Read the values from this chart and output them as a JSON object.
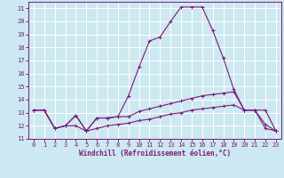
{
  "xlabel": "Windchill (Refroidissement éolien,°C)",
  "background_color": "#cce8f0",
  "grid_color": "#ffffff",
  "line_color": "#7b1a7b",
  "xlim": [
    -0.5,
    23.5
  ],
  "ylim": [
    11.0,
    21.5
  ],
  "xticks": [
    0,
    1,
    2,
    3,
    4,
    5,
    6,
    7,
    8,
    9,
    10,
    11,
    12,
    13,
    14,
    15,
    16,
    17,
    18,
    19,
    20,
    21,
    22,
    23
  ],
  "yticks": [
    11,
    12,
    13,
    14,
    15,
    16,
    17,
    18,
    19,
    20,
    21
  ],
  "series": [
    [
      13.2,
      13.2,
      11.8,
      12.0,
      12.8,
      11.6,
      12.6,
      12.6,
      12.7,
      14.3,
      16.5,
      18.5,
      18.8,
      20.0,
      21.1,
      21.1,
      21.1,
      19.3,
      17.2,
      14.8,
      13.2,
      13.2,
      12.1,
      11.6
    ],
    [
      13.2,
      13.2,
      11.8,
      12.0,
      12.8,
      11.6,
      12.6,
      12.6,
      12.7,
      12.7,
      13.1,
      13.3,
      13.5,
      13.7,
      13.9,
      14.1,
      14.3,
      14.4,
      14.5,
      14.6,
      13.2,
      13.2,
      13.2,
      11.6
    ],
    [
      13.2,
      13.2,
      11.8,
      12.0,
      12.0,
      11.6,
      11.8,
      12.0,
      12.1,
      12.2,
      12.4,
      12.5,
      12.7,
      12.9,
      13.0,
      13.2,
      13.3,
      13.4,
      13.5,
      13.6,
      13.2,
      13.2,
      11.8,
      11.6
    ]
  ],
  "tick_fontsize": 5,
  "xlabel_fontsize": 5.5
}
